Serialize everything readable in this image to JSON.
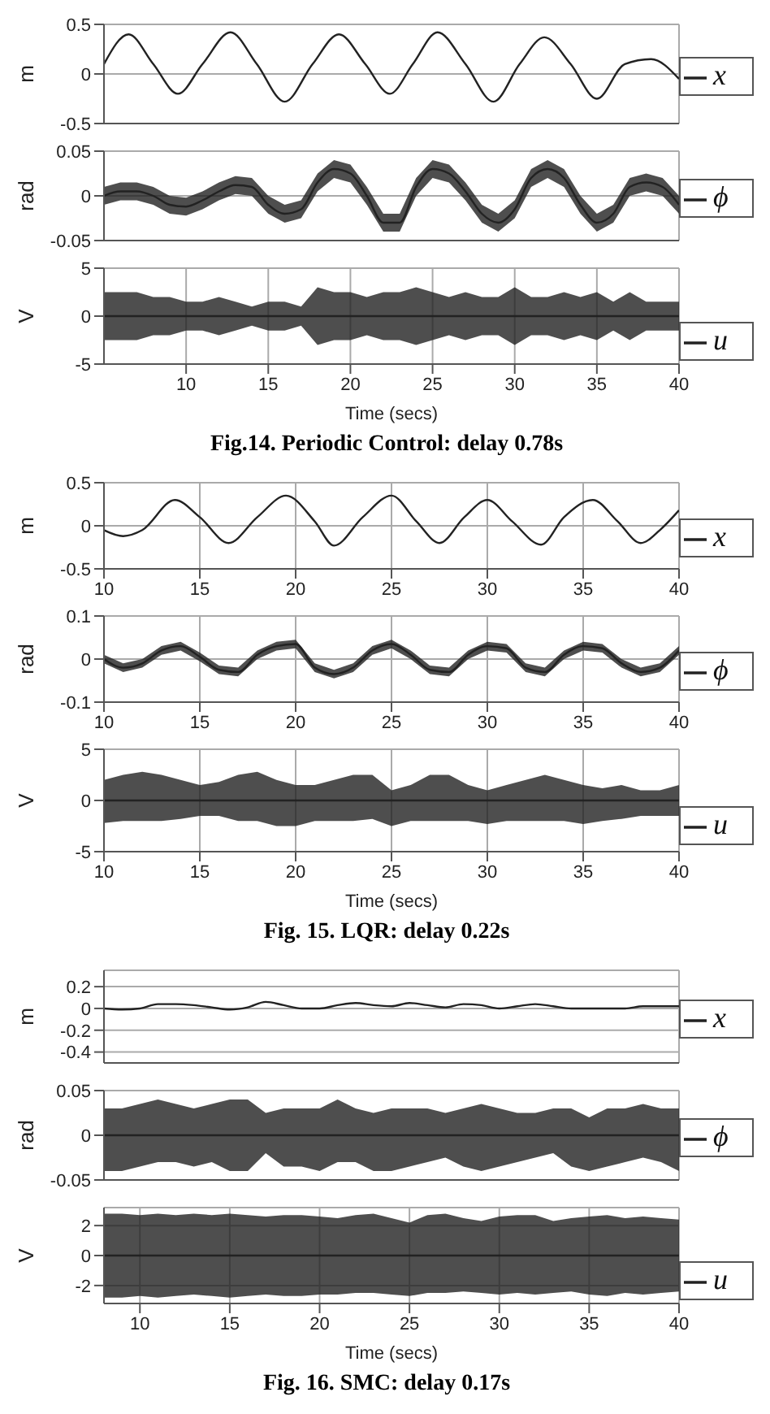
{
  "chart_data": [
    {
      "type": "line",
      "ylabel": "m",
      "xlim": [
        5,
        40
      ],
      "xticks": [
        10,
        15,
        20,
        25,
        30,
        35,
        40
      ],
      "ylim": [
        -0.5,
        0.5
      ],
      "yticks": [
        -0.5,
        0,
        0.5
      ],
      "grid": true,
      "legend": "right",
      "tick_labels": "y",
      "line_style": "solid",
      "series": [
        {
          "name": "x",
          "color": "#222222",
          "x": [
            5,
            6.5,
            8,
            9.5,
            11,
            12.7,
            14.3,
            16,
            17.7,
            19.3,
            20.9,
            22.4,
            23.8,
            25.3,
            27,
            28.7,
            30.3,
            31.8,
            33.4,
            35,
            36.7,
            38.3,
            40
          ],
          "values": [
            0.1,
            0.4,
            0.1,
            -0.2,
            0.1,
            0.42,
            0.1,
            -0.28,
            0.1,
            0.4,
            0.1,
            -0.2,
            0.1,
            0.42,
            0.1,
            -0.28,
            0.1,
            0.37,
            0.1,
            -0.25,
            0.1,
            0.15,
            -0.05
          ]
        }
      ]
    },
    {
      "type": "line",
      "ylabel": "rad",
      "x": [
        5,
        6,
        7,
        8,
        9,
        10,
        11,
        12,
        13,
        14,
        15,
        16,
        17,
        18,
        19,
        20,
        21,
        22,
        23,
        24,
        25,
        26,
        27,
        28,
        29,
        30,
        31,
        32,
        33,
        34,
        35,
        36,
        37,
        38,
        39,
        40
      ],
      "xlim": [
        5,
        40
      ],
      "xticks": [
        10,
        15,
        20,
        25,
        30,
        35,
        40
      ],
      "ylim": [
        -0.05,
        0.05
      ],
      "yticks": [
        -0.05,
        0,
        0.05
      ],
      "grid": true,
      "legend": "right",
      "tick_labels": "y",
      "line_style": "solid",
      "series": [
        {
          "name": "ϕ",
          "color": "#222222",
          "values": [
            0,
            0.005,
            0.005,
            0,
            -0.01,
            -0.012,
            -0.005,
            0.005,
            0.012,
            0.01,
            -0.01,
            -0.02,
            -0.015,
            0.015,
            0.03,
            0.025,
            0,
            -0.03,
            -0.03,
            0.01,
            0.03,
            0.025,
            0.005,
            -0.02,
            -0.03,
            -0.015,
            0.02,
            0.03,
            0.02,
            -0.01,
            -0.03,
            -0.02,
            0.01,
            0.015,
            0.01,
            -0.01
          ],
          "lower": [
            -0.01,
            -0.005,
            -0.005,
            -0.01,
            -0.02,
            -0.022,
            -0.015,
            -0.005,
            0.002,
            0,
            -0.02,
            -0.03,
            -0.025,
            0.005,
            0.02,
            0.015,
            -0.01,
            -0.04,
            -0.04,
            0,
            0.02,
            0.015,
            -0.005,
            -0.03,
            -0.04,
            -0.025,
            0.01,
            0.02,
            0.01,
            -0.02,
            -0.04,
            -0.03,
            0,
            0.005,
            0,
            -0.02
          ],
          "upper": [
            0.01,
            0.015,
            0.015,
            0.01,
            0,
            -0.002,
            0.005,
            0.015,
            0.022,
            0.02,
            0,
            -0.01,
            -0.005,
            0.025,
            0.04,
            0.035,
            0.01,
            -0.02,
            -0.02,
            0.02,
            0.04,
            0.035,
            0.015,
            -0.01,
            -0.02,
            -0.005,
            0.03,
            0.04,
            0.03,
            0,
            -0.02,
            -0.01,
            0.02,
            0.025,
            0.02,
            0
          ]
        }
      ]
    },
    {
      "type": "line",
      "ylabel": "V",
      "xlabel": "Time (secs)",
      "annotations": [
        "Fig.14. Periodic Control: delay 0.78s"
      ],
      "x": [
        5,
        6,
        7,
        8,
        9,
        10,
        11,
        12,
        13,
        14,
        15,
        16,
        17,
        18,
        19,
        20,
        21,
        22,
        23,
        24,
        25,
        26,
        27,
        28,
        29,
        30,
        31,
        32,
        33,
        34,
        35,
        36,
        37,
        38,
        39,
        40
      ],
      "xlim": [
        5,
        40
      ],
      "xticks": [
        10,
        15,
        20,
        25,
        30,
        35,
        40
      ],
      "ylim": [
        -5,
        5
      ],
      "yticks": [
        -5,
        0,
        5
      ],
      "grid": true,
      "legend": "right",
      "line_style": "solid",
      "series": [
        {
          "name": "u",
          "color": "#222222",
          "values": [
            0,
            0,
            0,
            0,
            0,
            0,
            0,
            0,
            0,
            0,
            0,
            0,
            0,
            0,
            0,
            0,
            0,
            0,
            0,
            0,
            0,
            0,
            0,
            0,
            0,
            0,
            0,
            0,
            0,
            0,
            0,
            0,
            0,
            0,
            0,
            0
          ],
          "lower": [
            -2.5,
            -2.5,
            -2.5,
            -2,
            -2,
            -1.5,
            -1.5,
            -2,
            -1.5,
            -1,
            -1.5,
            -1.5,
            -1,
            -3,
            -2.5,
            -2.5,
            -2,
            -2.5,
            -2.5,
            -3,
            -2.5,
            -2,
            -2.5,
            -2,
            -2,
            -3,
            -2,
            -2,
            -2.5,
            -2,
            -2.5,
            -1.5,
            -2.5,
            -1.5,
            -1.5,
            -1.5
          ],
          "upper": [
            2.5,
            2.5,
            2.5,
            2,
            2,
            1.5,
            1.5,
            2,
            1.5,
            1,
            1.5,
            1.5,
            1,
            3,
            2.5,
            2.5,
            2,
            2.5,
            2.5,
            3,
            2.5,
            2,
            2.5,
            2,
            2,
            3,
            2,
            2,
            2.5,
            2,
            2.5,
            1.5,
            2.5,
            1.5,
            1.5,
            1.5
          ]
        }
      ]
    },
    {
      "type": "line",
      "ylabel": "m",
      "xlim": [
        10,
        40
      ],
      "xticks": [
        10,
        15,
        20,
        25,
        30,
        35,
        40
      ],
      "ylim": [
        -0.5,
        0.5
      ],
      "yticks": [
        -0.5,
        0,
        0.5
      ],
      "grid": true,
      "legend": "right",
      "line_style": "solid",
      "series": [
        {
          "name": "x",
          "color": "#222222",
          "x": [
            10,
            11,
            12,
            13.7,
            15,
            16.5,
            18,
            19.5,
            21,
            22,
            23.5,
            25,
            26.3,
            27.5,
            28.8,
            30,
            31.3,
            32.8,
            34,
            35.5,
            36.8,
            38,
            39,
            40
          ],
          "values": [
            -0.05,
            -0.12,
            -0.05,
            0.3,
            0.1,
            -0.2,
            0.1,
            0.35,
            0.05,
            -0.23,
            0.1,
            0.35,
            0.05,
            -0.2,
            0.1,
            0.3,
            0.05,
            -0.22,
            0.1,
            0.3,
            0.05,
            -0.2,
            -0.05,
            0.18
          ]
        }
      ]
    },
    {
      "type": "line",
      "ylabel": "rad",
      "x": [
        10,
        11,
        12,
        13,
        14,
        15,
        16,
        17,
        18,
        19,
        20,
        21,
        22,
        23,
        24,
        25,
        26,
        27,
        28,
        29,
        30,
        31,
        32,
        33,
        34,
        35,
        36,
        37,
        38,
        39,
        40
      ],
      "xlim": [
        10,
        40
      ],
      "xticks": [
        10,
        15,
        20,
        25,
        30,
        35,
        40
      ],
      "ylim": [
        -0.1,
        0.1
      ],
      "yticks": [
        -0.1,
        0,
        0.1
      ],
      "grid": true,
      "legend": "right",
      "line_style": "solid",
      "series": [
        {
          "name": "ϕ",
          "color": "#222222",
          "values": [
            0,
            -0.02,
            -0.01,
            0.02,
            0.03,
            0.005,
            -0.025,
            -0.03,
            0.01,
            0.03,
            0.035,
            -0.02,
            -0.035,
            -0.02,
            0.02,
            0.035,
            0.01,
            -0.025,
            -0.03,
            0.01,
            0.03,
            0.025,
            -0.02,
            -0.03,
            0.01,
            0.03,
            0.025,
            -0.01,
            -0.03,
            -0.02,
            0.02
          ],
          "lower": [
            -0.01,
            -0.03,
            -0.02,
            0.01,
            0.02,
            -0.005,
            -0.035,
            -0.04,
            0,
            0.02,
            0.025,
            -0.03,
            -0.045,
            -0.03,
            0.01,
            0.025,
            0,
            -0.035,
            -0.04,
            0,
            0.02,
            0.015,
            -0.03,
            -0.04,
            0,
            0.02,
            0.015,
            -0.02,
            -0.04,
            -0.03,
            0.01
          ],
          "upper": [
            0.01,
            -0.01,
            0,
            0.03,
            0.04,
            0.015,
            -0.015,
            -0.02,
            0.02,
            0.04,
            0.045,
            -0.01,
            -0.025,
            -0.01,
            0.03,
            0.045,
            0.02,
            -0.015,
            -0.02,
            0.02,
            0.04,
            0.035,
            -0.01,
            -0.02,
            0.02,
            0.04,
            0.035,
            0,
            -0.02,
            -0.01,
            0.03
          ]
        }
      ]
    },
    {
      "type": "line",
      "ylabel": "V",
      "xlabel": "Time (secs)",
      "annotations": [
        "Fig. 15. LQR: delay 0.22s"
      ],
      "x": [
        10,
        11,
        12,
        13,
        14,
        15,
        16,
        17,
        18,
        19,
        20,
        21,
        22,
        23,
        24,
        25,
        26,
        27,
        28,
        29,
        30,
        31,
        32,
        33,
        34,
        35,
        36,
        37,
        38,
        39,
        40
      ],
      "xlim": [
        10,
        40
      ],
      "xticks": [
        10,
        15,
        20,
        25,
        30,
        35,
        40
      ],
      "ylim": [
        -5,
        5
      ],
      "yticks": [
        -5,
        0,
        5
      ],
      "grid": true,
      "legend": "right",
      "line_style": "solid",
      "series": [
        {
          "name": "u",
          "color": "#222222",
          "values": [
            0,
            0,
            0,
            0,
            0,
            0,
            0,
            0,
            0,
            0,
            0,
            0,
            0,
            0,
            0,
            0,
            0,
            0,
            0,
            0,
            0,
            0,
            0,
            0,
            0,
            0,
            0,
            0,
            0,
            0,
            0
          ],
          "lower": [
            -2.2,
            -2,
            -2,
            -2,
            -1.8,
            -1.5,
            -1.5,
            -2,
            -2,
            -2.5,
            -2.5,
            -2,
            -2,
            -2,
            -1.8,
            -2.5,
            -2,
            -2,
            -2,
            -2,
            -2.3,
            -2,
            -2,
            -2,
            -2,
            -2.3,
            -2,
            -1.8,
            -1.5,
            -1.5,
            -1.5
          ],
          "upper": [
            2,
            2.5,
            2.8,
            2.5,
            2,
            1.5,
            1.8,
            2.5,
            2.8,
            2,
            1.5,
            1.5,
            2,
            2.5,
            2.5,
            1,
            1.5,
            2.5,
            2.5,
            1.5,
            1,
            1.5,
            2,
            2.5,
            2,
            1.5,
            1.2,
            1.5,
            1,
            1,
            1.5
          ]
        }
      ]
    },
    {
      "type": "line",
      "ylabel": "m",
      "x": [
        8,
        9,
        10,
        11,
        12,
        13,
        14,
        15,
        16,
        17,
        18,
        19,
        20,
        21,
        22,
        23,
        24,
        25,
        26,
        27,
        28,
        29,
        30,
        31,
        32,
        33,
        34,
        35,
        36,
        37,
        38,
        39,
        40
      ],
      "xlim": [
        8,
        40
      ],
      "xticks": [
        10,
        15,
        20,
        25,
        30,
        35,
        40
      ],
      "ylim": [
        -0.5,
        0.35
      ],
      "yticks": [
        -0.4,
        -0.2,
        0,
        0.2
      ],
      "grid": true,
      "legend": "right",
      "tick_labels": "y",
      "line_style": "solid",
      "series": [
        {
          "name": "x",
          "color": "#222222",
          "values": [
            0,
            -0.01,
            0,
            0.04,
            0.04,
            0.03,
            0.01,
            -0.01,
            0.01,
            0.06,
            0.03,
            0,
            0,
            0.03,
            0.05,
            0.03,
            0.02,
            0.05,
            0.03,
            0.01,
            0.04,
            0.03,
            0,
            0.02,
            0.04,
            0.02,
            0,
            0,
            0,
            0,
            0.02,
            0.02,
            0.02
          ]
        }
      ]
    },
    {
      "type": "line",
      "ylabel": "rad",
      "x": [
        8,
        9,
        10,
        11,
        12,
        13,
        14,
        15,
        16,
        17,
        18,
        19,
        20,
        21,
        22,
        23,
        24,
        25,
        26,
        27,
        28,
        29,
        30,
        31,
        32,
        33,
        34,
        35,
        36,
        37,
        38,
        39,
        40
      ],
      "xlim": [
        8,
        40
      ],
      "xticks": [
        10,
        15,
        20,
        25,
        30,
        35,
        40
      ],
      "ylim": [
        -0.05,
        0.05
      ],
      "yticks": [
        -0.05,
        0,
        0.05
      ],
      "grid": true,
      "legend": "right",
      "tick_labels": "y",
      "line_style": "solid",
      "series": [
        {
          "name": "ϕ",
          "color": "#222222",
          "values": [
            0,
            0,
            0,
            0,
            0,
            0,
            0,
            0,
            0,
            0,
            0,
            0,
            0,
            0,
            0,
            0,
            0,
            0,
            0,
            0,
            0,
            0,
            0,
            0,
            0,
            0,
            0,
            0,
            0,
            0,
            0,
            0,
            0
          ],
          "lower": [
            -0.04,
            -0.04,
            -0.035,
            -0.03,
            -0.03,
            -0.035,
            -0.03,
            -0.04,
            -0.04,
            -0.02,
            -0.035,
            -0.035,
            -0.04,
            -0.03,
            -0.03,
            -0.04,
            -0.04,
            -0.035,
            -0.03,
            -0.025,
            -0.035,
            -0.04,
            -0.035,
            -0.03,
            -0.025,
            -0.02,
            -0.035,
            -0.04,
            -0.035,
            -0.03,
            -0.025,
            -0.03,
            -0.04
          ],
          "upper": [
            0.03,
            0.03,
            0.035,
            0.04,
            0.035,
            0.03,
            0.035,
            0.04,
            0.04,
            0.025,
            0.03,
            0.03,
            0.03,
            0.04,
            0.03,
            0.025,
            0.03,
            0.03,
            0.03,
            0.025,
            0.03,
            0.035,
            0.03,
            0.025,
            0.025,
            0.03,
            0.03,
            0.02,
            0.03,
            0.03,
            0.035,
            0.03,
            0.03
          ]
        }
      ]
    },
    {
      "type": "line",
      "ylabel": "V",
      "xlabel": "Time (secs)",
      "annotations": [
        "Fig. 16. SMC: delay 0.17s"
      ],
      "x": [
        8,
        9,
        10,
        11,
        12,
        13,
        14,
        15,
        16,
        17,
        18,
        19,
        20,
        21,
        22,
        23,
        24,
        25,
        26,
        27,
        28,
        29,
        30,
        31,
        32,
        33,
        34,
        35,
        36,
        37,
        38,
        39,
        40
      ],
      "xlim": [
        8,
        40
      ],
      "xticks": [
        10,
        15,
        20,
        25,
        30,
        35,
        40
      ],
      "ylim": [
        -3.2,
        3.2
      ],
      "yticks": [
        -2,
        0,
        2
      ],
      "grid": true,
      "legend": "right",
      "line_style": "solid",
      "series": [
        {
          "name": "u",
          "color": "#222222",
          "values": [
            0,
            0,
            0,
            0,
            0,
            0,
            0,
            0,
            0,
            0,
            0,
            0,
            0,
            0,
            0,
            0,
            0,
            0,
            0,
            0,
            0,
            0,
            0,
            0,
            0,
            0,
            0,
            0,
            0,
            0,
            0,
            0,
            0
          ],
          "lower": [
            -2.8,
            -2.8,
            -2.7,
            -2.8,
            -2.7,
            -2.6,
            -2.7,
            -2.8,
            -2.7,
            -2.6,
            -2.7,
            -2.7,
            -2.6,
            -2.6,
            -2.5,
            -2.5,
            -2.6,
            -2.7,
            -2.5,
            -2.5,
            -2.4,
            -2.5,
            -2.6,
            -2.5,
            -2.6,
            -2.5,
            -2.4,
            -2.6,
            -2.7,
            -2.5,
            -2.6,
            -2.5,
            -2.4
          ],
          "upper": [
            2.8,
            2.8,
            2.7,
            2.8,
            2.7,
            2.8,
            2.7,
            2.8,
            2.7,
            2.6,
            2.7,
            2.7,
            2.6,
            2.5,
            2.7,
            2.8,
            2.5,
            2.2,
            2.7,
            2.8,
            2.5,
            2.3,
            2.6,
            2.7,
            2.7,
            2.3,
            2.5,
            2.6,
            2.7,
            2.5,
            2.6,
            2.5,
            2.4
          ]
        }
      ]
    }
  ]
}
